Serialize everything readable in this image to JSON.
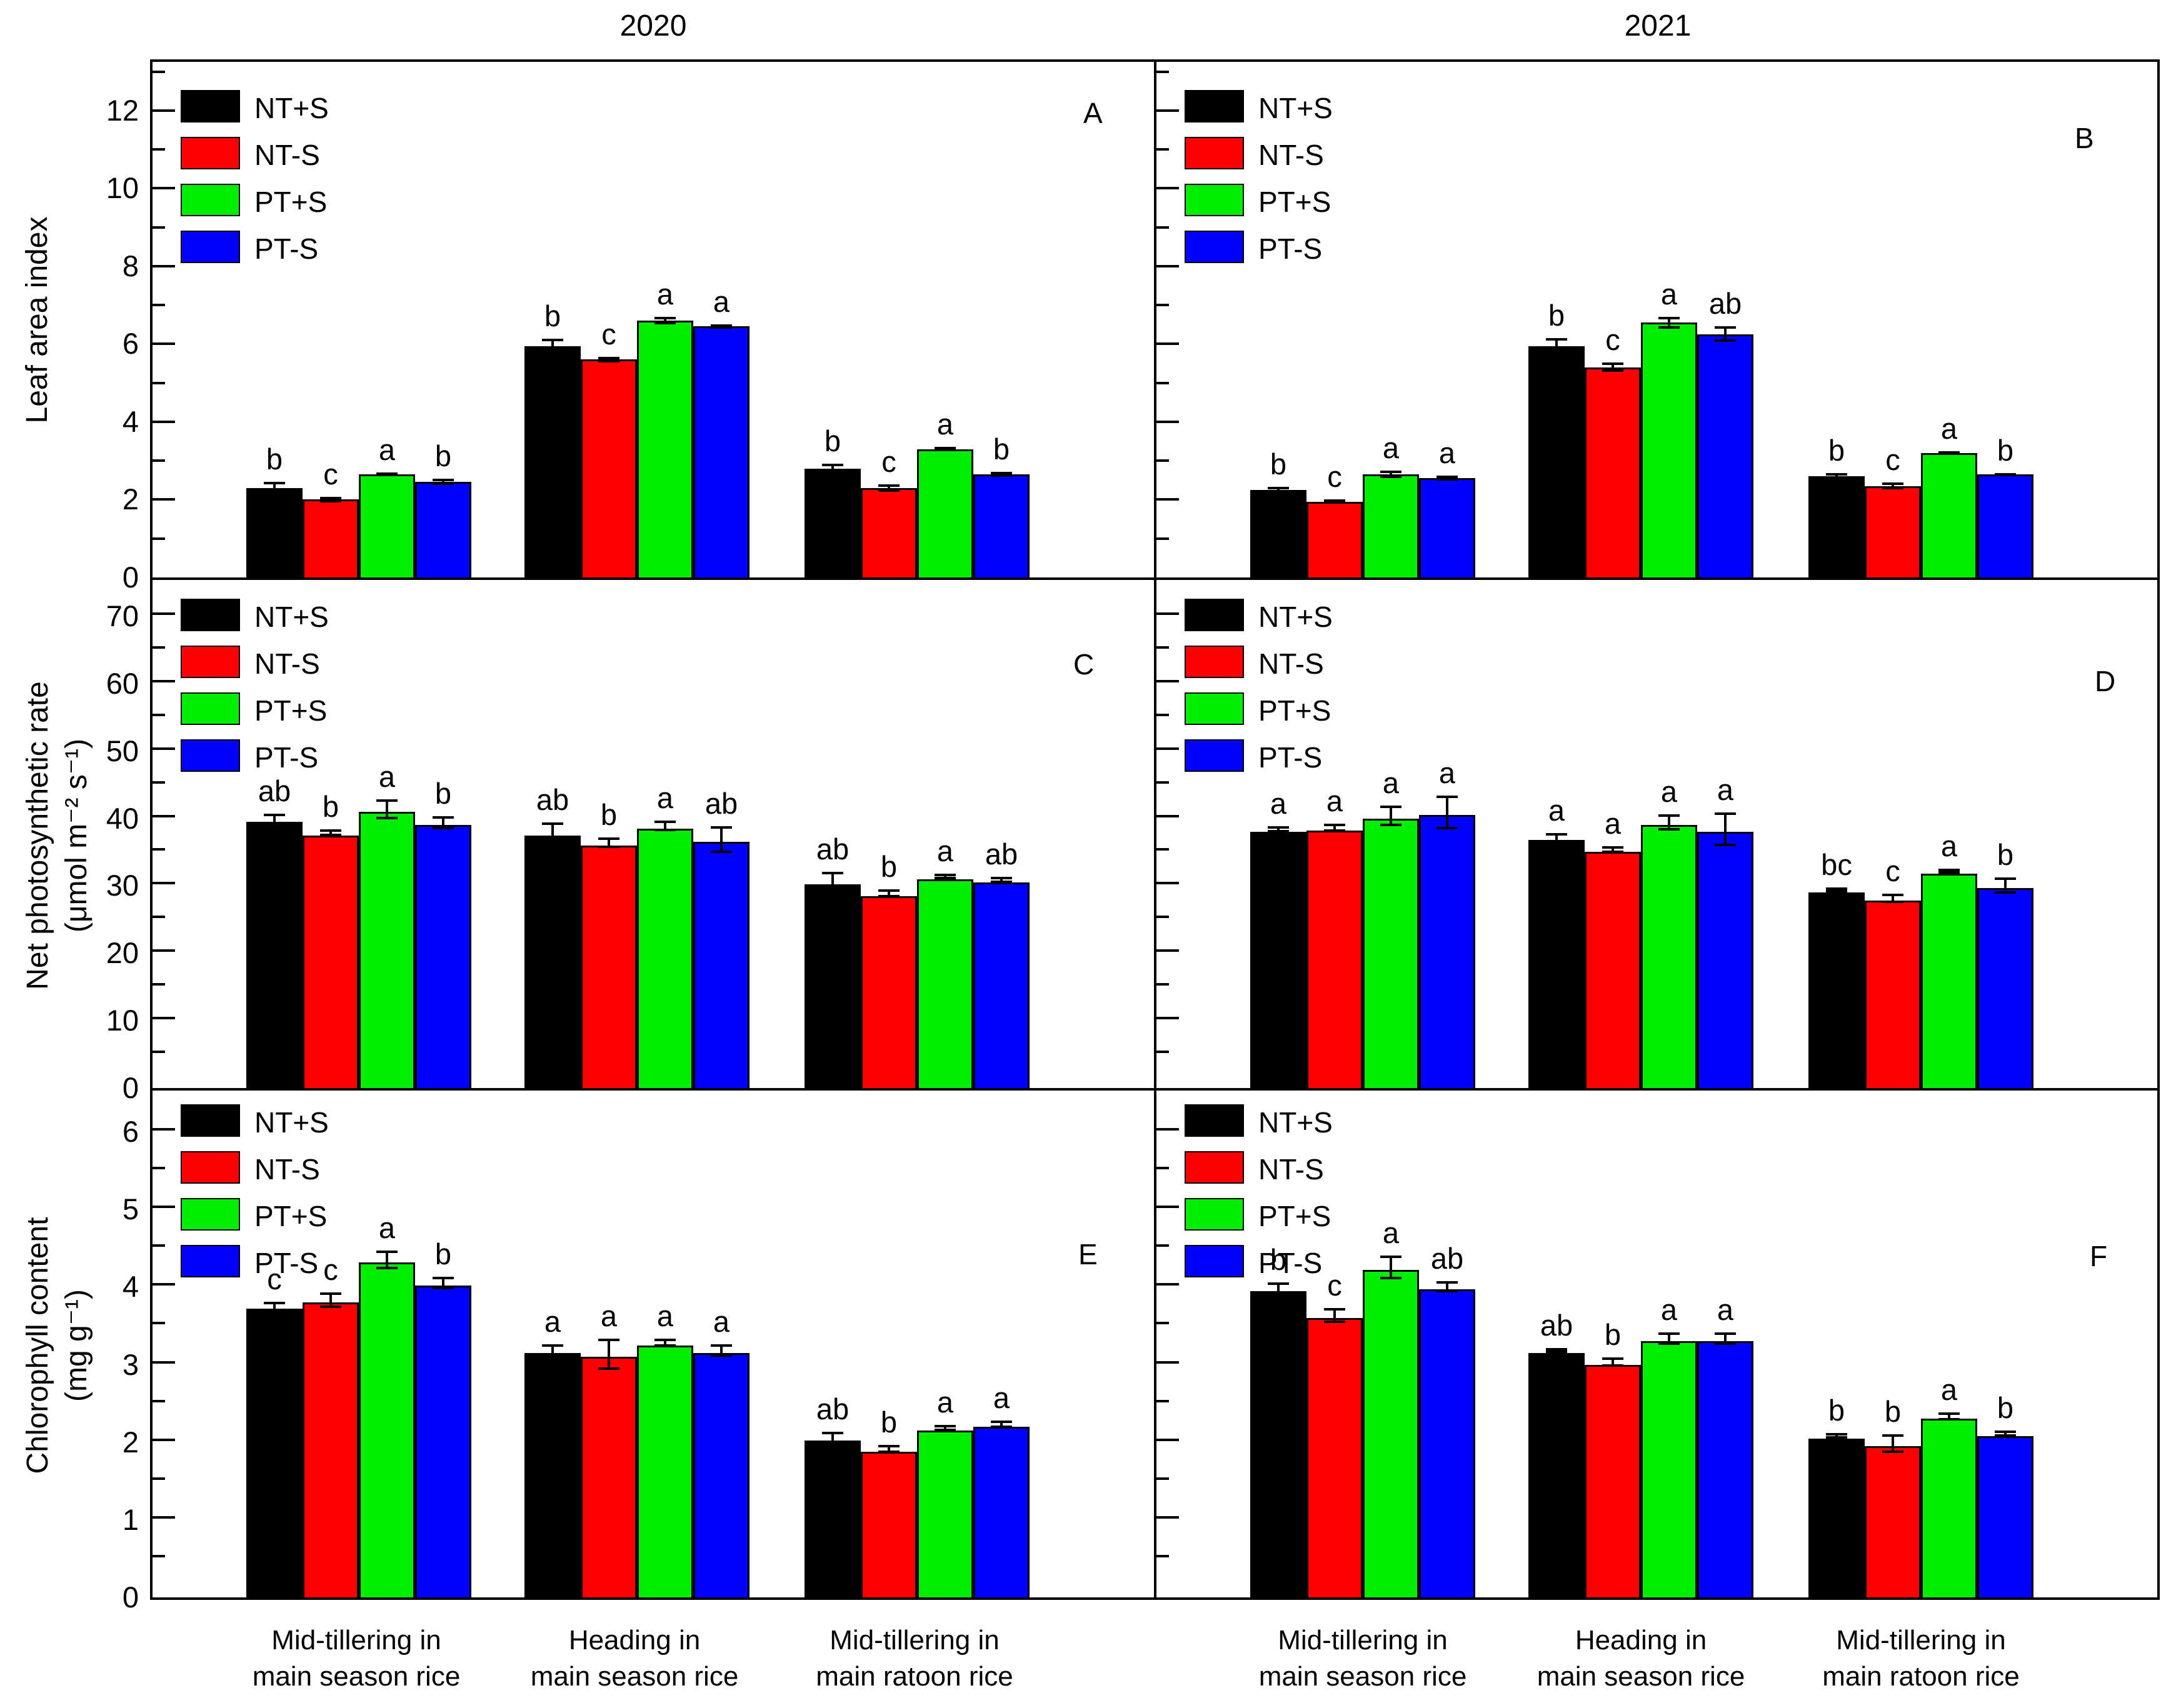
{
  "chart_data": {
    "type": "bar",
    "column_titles": {
      "left": "2020",
      "right": "2021"
    },
    "treatments": [
      {
        "label": "NT+S",
        "color": "#000000"
      },
      {
        "label": "NT-S",
        "color": "#ff0000"
      },
      {
        "label": "PT+S",
        "color": "#00ee00"
      },
      {
        "label": "PT-S",
        "color": "#0000ff"
      }
    ],
    "categories": [
      [
        "Mid-tillering in",
        "main season rice"
      ],
      [
        "Heading in",
        "main season rice"
      ],
      [
        "Mid-tillering in",
        "main ratoon rice"
      ]
    ],
    "panels": [
      {
        "id": "A",
        "year": "2020",
        "row": 0,
        "col": 0,
        "ylabel_lines": [
          "Leaf area index"
        ],
        "ylim": [
          0,
          13.25
        ],
        "yticks": [
          0,
          2,
          4,
          6,
          8,
          10,
          12
        ],
        "minor_step": 1,
        "legend": true,
        "show_tick_labels": true,
        "series": [
          {
            "name": "NT+S",
            "values": [
              2.3,
              5.95,
              2.8
            ],
            "errors": [
              0.15,
              0.18,
              0.12
            ]
          },
          {
            "name": "NT-S",
            "values": [
              2.0,
              5.6,
              2.3
            ],
            "errors": [
              0.07,
              0.07,
              0.1
            ]
          },
          {
            "name": "PT+S",
            "values": [
              2.65,
              6.6,
              3.3
            ],
            "errors": [
              0.05,
              0.1,
              0.05
            ]
          },
          {
            "name": "PT-S",
            "values": [
              2.45,
              6.45,
              2.65
            ],
            "errors": [
              0.08,
              0.05,
              0.07
            ]
          }
        ],
        "letters": [
          [
            "b",
            "c",
            "a",
            "b"
          ],
          [
            "b",
            "c",
            "a",
            "a"
          ],
          [
            "b",
            "c",
            "a",
            "b"
          ]
        ]
      },
      {
        "id": "B",
        "year": "2021",
        "row": 0,
        "col": 1,
        "ylabel_lines": [],
        "ylim": [
          0,
          13.25
        ],
        "yticks": [
          0,
          2,
          4,
          6,
          8,
          10,
          12
        ],
        "minor_step": 1,
        "legend": true,
        "show_tick_labels": false,
        "series": [
          {
            "name": "NT+S",
            "values": [
              2.25,
              5.95,
              2.6
            ],
            "errors": [
              0.08,
              0.2,
              0.08
            ]
          },
          {
            "name": "NT-S",
            "values": [
              1.95,
              5.4,
              2.35
            ],
            "errors": [
              0.05,
              0.12,
              0.09
            ]
          },
          {
            "name": "PT+S",
            "values": [
              2.65,
              6.55,
              3.2
            ],
            "errors": [
              0.1,
              0.15,
              0.05
            ]
          },
          {
            "name": "PT-S",
            "values": [
              2.55,
              6.25,
              2.65
            ],
            "errors": [
              0.06,
              0.2,
              0.04
            ]
          }
        ],
        "letters": [
          [
            "b",
            "c",
            "a",
            "a"
          ],
          [
            "b",
            "c",
            "a",
            "ab"
          ],
          [
            "b",
            "c",
            "a",
            "b"
          ]
        ]
      },
      {
        "id": "C",
        "year": "2020",
        "row": 1,
        "col": 0,
        "ylabel_lines": [
          "Net photosynthetic rate",
          "(μmol m⁻² s⁻¹)"
        ],
        "ylim": [
          0,
          75
        ],
        "yticks": [
          0,
          10,
          20,
          30,
          40,
          50,
          60,
          70
        ],
        "minor_step": 5,
        "legend": true,
        "show_tick_labels": true,
        "series": [
          {
            "name": "NT+S",
            "values": [
              39.5,
              37.5,
              30.2
            ],
            "errors": [
              0.8,
              1.5,
              1.5
            ]
          },
          {
            "name": "NT-S",
            "values": [
              37.5,
              36.0,
              28.5
            ],
            "errors": [
              0.5,
              0.8,
              0.6
            ]
          },
          {
            "name": "PT+S",
            "values": [
              41.0,
              38.5,
              31.0
            ],
            "errors": [
              1.5,
              0.8,
              0.4
            ]
          },
          {
            "name": "PT-S",
            "values": [
              39.0,
              36.5,
              30.5
            ],
            "errors": [
              1.0,
              2.0,
              0.5
            ]
          }
        ],
        "letters": [
          [
            "ab",
            "b",
            "a",
            "b"
          ],
          [
            "ab",
            "b",
            "a",
            "ab"
          ],
          [
            "ab",
            "b",
            "a",
            "ab"
          ]
        ]
      },
      {
        "id": "D",
        "year": "2021",
        "row": 1,
        "col": 1,
        "ylabel_lines": [],
        "ylim": [
          0,
          75
        ],
        "yticks": [
          0,
          10,
          20,
          30,
          40,
          50,
          60,
          70
        ],
        "minor_step": 5,
        "legend": true,
        "show_tick_labels": false,
        "series": [
          {
            "name": "NT+S",
            "values": [
              38.0,
              36.8,
              29.0
            ],
            "errors": [
              0.5,
              0.7,
              0.4
            ]
          },
          {
            "name": "NT-S",
            "values": [
              38.2,
              35.0,
              27.8
            ],
            "errors": [
              0.6,
              0.5,
              0.7
            ]
          },
          {
            "name": "PT+S",
            "values": [
              40.0,
              39.0,
              31.8
            ],
            "errors": [
              1.5,
              1.2,
              0.4
            ]
          },
          {
            "name": "PT-S",
            "values": [
              40.5,
              38.0,
              29.7
            ],
            "errors": [
              2.5,
              2.5,
              1.2
            ]
          }
        ],
        "letters": [
          [
            "a",
            "a",
            "a",
            "a"
          ],
          [
            "a",
            "a",
            "a",
            "a"
          ],
          [
            "bc",
            "c",
            "a",
            "b"
          ]
        ]
      },
      {
        "id": "E",
        "year": "2020",
        "row": 2,
        "col": 0,
        "ylabel_lines": [
          "Chlorophyll content",
          "(mg g⁻¹)"
        ],
        "ylim": [
          0,
          6.5
        ],
        "yticks": [
          0,
          1,
          2,
          3,
          4,
          5,
          6
        ],
        "minor_step": 0.5,
        "legend": true,
        "show_tick_labels": true,
        "series": [
          {
            "name": "NT+S",
            "values": [
              3.72,
              3.15,
              2.02
            ],
            "errors": [
              0.06,
              0.08,
              0.08
            ]
          },
          {
            "name": "NT-S",
            "values": [
              3.8,
              3.1,
              1.88
            ],
            "errors": [
              0.1,
              0.2,
              0.05
            ]
          },
          {
            "name": "PT+S",
            "values": [
              4.32,
              3.25,
              2.15
            ],
            "errors": [
              0.12,
              0.05,
              0.04
            ]
          },
          {
            "name": "PT-S",
            "values": [
              4.02,
              3.15,
              2.2
            ],
            "errors": [
              0.08,
              0.08,
              0.05
            ]
          }
        ],
        "letters": [
          [
            "c",
            "c",
            "a",
            "b"
          ],
          [
            "a",
            "a",
            "a",
            "a"
          ],
          [
            "ab",
            "b",
            "a",
            "a"
          ]
        ]
      },
      {
        "id": "F",
        "year": "2021",
        "row": 2,
        "col": 1,
        "ylabel_lines": [],
        "ylim": [
          0,
          6.5
        ],
        "yticks": [
          0,
          1,
          2,
          3,
          4,
          5,
          6
        ],
        "minor_step": 0.5,
        "legend": true,
        "show_tick_labels": false,
        "series": [
          {
            "name": "NT+S",
            "values": [
              3.95,
              3.15,
              2.05
            ],
            "errors": [
              0.08,
              0.03,
              0.04
            ]
          },
          {
            "name": "NT-S",
            "values": [
              3.6,
              3.0,
              1.95
            ],
            "errors": [
              0.1,
              0.06,
              0.12
            ]
          },
          {
            "name": "PT+S",
            "values": [
              4.22,
              3.3,
              2.3
            ],
            "errors": [
              0.15,
              0.08,
              0.05
            ]
          },
          {
            "name": "PT-S",
            "values": [
              3.97,
              3.3,
              2.08
            ],
            "errors": [
              0.07,
              0.08,
              0.04
            ]
          }
        ],
        "letters": [
          [
            "b",
            "c",
            "a",
            "ab"
          ],
          [
            "ab",
            "b",
            "a",
            "a"
          ],
          [
            "b",
            "b",
            "a",
            "b"
          ]
        ]
      }
    ]
  }
}
